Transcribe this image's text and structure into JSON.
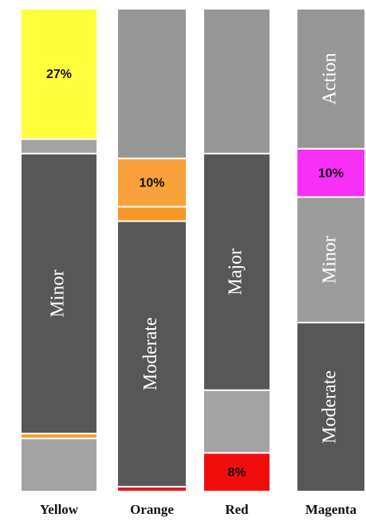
{
  "chart_data": {
    "type": "stacked-bar",
    "categories": [
      "Yellow",
      "Orange",
      "Red",
      "Magenta"
    ],
    "ylim": [
      0,
      100
    ],
    "stacks": [
      {
        "values": [
          27,
          3,
          58,
          1,
          11
        ],
        "colors": [
          "#ffff3c",
          "#a3a3a3",
          "#575757",
          "#f5a030",
          "#a3a3a3"
        ],
        "value_labels": [
          "27%",
          null,
          null,
          null,
          null
        ],
        "labels": [
          null,
          null,
          "Minor",
          null,
          null
        ]
      },
      {
        "values": [
          31,
          10,
          3,
          55,
          1
        ],
        "colors": [
          "#979797",
          "#f9a23c",
          "#f59a28",
          "#575757",
          "#e21b1b"
        ],
        "value_labels": [
          null,
          "10%",
          null,
          null,
          null
        ],
        "labels": [
          null,
          null,
          null,
          "Moderate",
          null
        ]
      },
      {
        "values": [
          30,
          49,
          13,
          8
        ],
        "colors": [
          "#979797",
          "#575757",
          "#a3a3a3",
          "#f20d0d"
        ],
        "value_labels": [
          null,
          null,
          null,
          "8%"
        ],
        "labels": [
          null,
          "Major",
          null,
          null
        ]
      },
      {
        "values": [
          29,
          10,
          26,
          35
        ],
        "colors": [
          "#979797",
          "#f72ff7",
          "#9c9c9c",
          "#575757"
        ],
        "value_labels": [
          null,
          "10%",
          null,
          null
        ],
        "labels": [
          "Action",
          null,
          "Minor",
          "Moderate"
        ]
      }
    ]
  }
}
